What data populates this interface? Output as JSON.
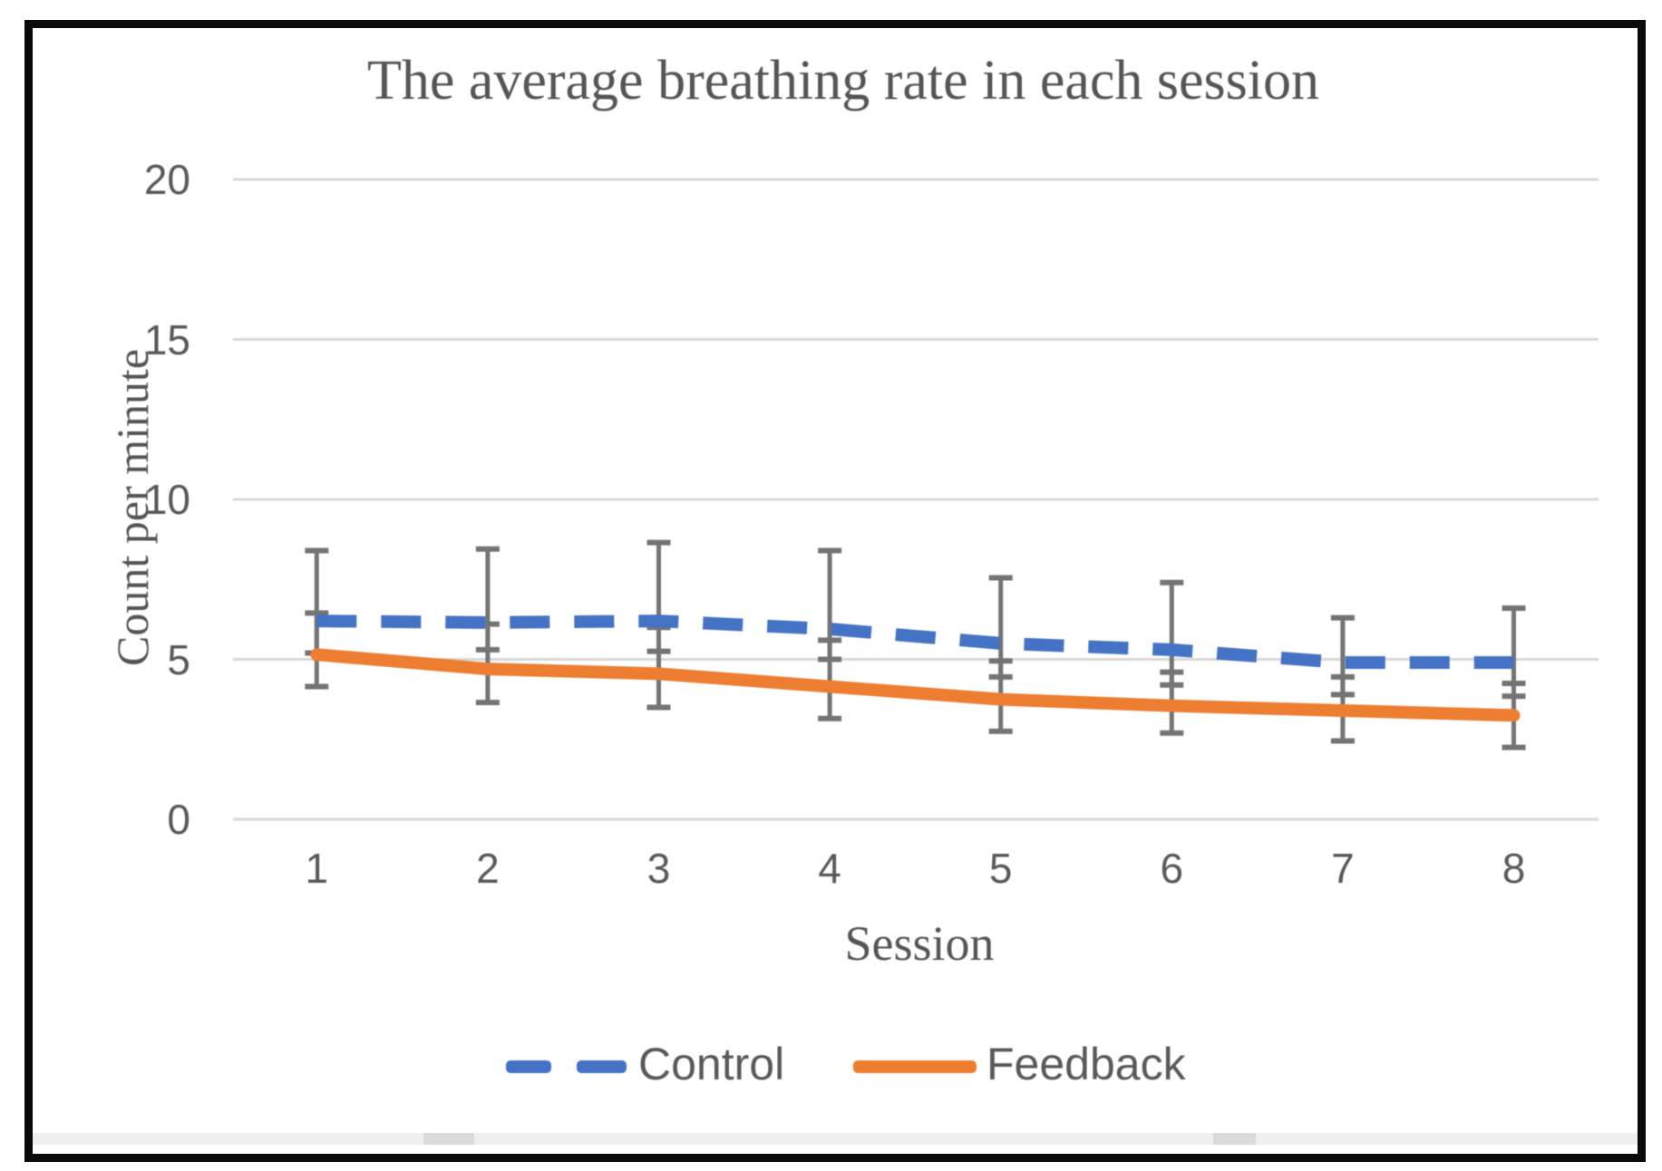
{
  "chart_data": {
    "type": "line",
    "title": "The average breathing rate in each session",
    "xlabel": "Session",
    "ylabel": "Count per minute",
    "categories": [
      "1",
      "2",
      "3",
      "4",
      "5",
      "6",
      "7",
      "8"
    ],
    "ylim": [
      0,
      20
    ],
    "yticks": [
      0,
      5,
      10,
      15,
      20
    ],
    "grid": true,
    "legend_position": "bottom",
    "error_bars": true,
    "series": [
      {
        "name": "Control",
        "color": "#4472C4",
        "line_style": "dashed",
        "values": [
          6.2,
          6.15,
          6.2,
          5.95,
          5.5,
          5.3,
          4.9,
          4.9
        ],
        "error_up": [
          2.2,
          2.3,
          2.45,
          2.45,
          2.05,
          2.1,
          1.4,
          1.7
        ],
        "error_down": [
          1.0,
          0.85,
          0.95,
          0.95,
          1.05,
          1.1,
          1.0,
          1.05
        ]
      },
      {
        "name": "Feedback",
        "color": "#ED7D31",
        "line_style": "solid",
        "values": [
          5.15,
          4.7,
          4.55,
          4.15,
          3.75,
          3.55,
          3.4,
          3.25
        ],
        "error_up": [
          1.3,
          1.4,
          1.45,
          1.45,
          1.2,
          1.05,
          1.05,
          1.0
        ],
        "error_down": [
          1.0,
          1.05,
          1.05,
          1.0,
          1.0,
          0.85,
          0.95,
          1.0
        ]
      }
    ],
    "colors": {
      "title_text": "#555555",
      "axis_text": "#595959",
      "gridline": "#D8D8D8",
      "error_bar": "#747474"
    }
  },
  "frame": {
    "border_color": "#0a0a0a",
    "background": "#ffffff"
  },
  "scrollbar": {
    "track_color": "#EFEFEF",
    "segment_color": "#DBDBDB"
  }
}
